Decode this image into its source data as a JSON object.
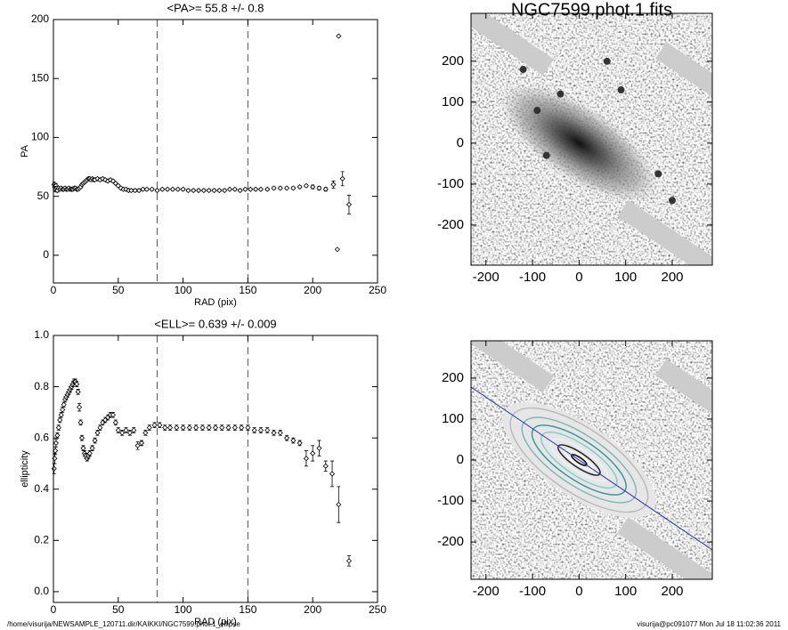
{
  "chart_data": [
    {
      "type": "scatter",
      "title": "<PA>=  55.8 +/-   0.8",
      "x_label": "RAD (pix)",
      "y_label": "PA",
      "xlim": [
        0,
        250
      ],
      "xticks": [
        0,
        50,
        100,
        150,
        200,
        250
      ],
      "ylim": [
        -23.5,
        200
      ],
      "yticks": [
        0,
        50,
        100,
        150,
        200
      ],
      "vlines": [
        80,
        150
      ],
      "color": "#000000",
      "x": [
        0.5,
        1,
        1.5,
        2,
        2.5,
        3,
        4,
        5,
        6,
        7,
        8,
        9,
        10,
        11,
        12,
        13,
        14,
        15,
        16,
        17,
        18,
        19,
        20,
        21,
        22,
        23,
        24,
        25,
        26,
        27,
        28,
        29,
        30,
        31,
        32,
        34,
        36,
        38,
        40,
        42,
        44,
        46,
        48,
        50,
        52,
        54,
        56,
        58,
        60,
        63,
        66,
        69,
        72,
        76,
        80,
        84,
        88,
        92,
        96,
        100,
        104,
        108,
        112,
        116,
        120,
        124,
        128,
        132,
        136,
        140,
        144,
        148,
        152,
        156,
        160,
        165,
        170,
        175,
        180,
        185,
        190,
        195,
        200,
        205,
        210,
        216,
        219,
        220,
        223,
        228
      ],
      "values": [
        60,
        58,
        56,
        59,
        57,
        55,
        57,
        56,
        57,
        56,
        56,
        57,
        56,
        56,
        57,
        56,
        56,
        56,
        57,
        57,
        56,
        56,
        57,
        58,
        60,
        61,
        62,
        63,
        64,
        65,
        65,
        64,
        65,
        64,
        64,
        65,
        64,
        65,
        64,
        63,
        64,
        63,
        61,
        59,
        57,
        56,
        56,
        55,
        55,
        55,
        55,
        56,
        56,
        56,
        55,
        56,
        56,
        56,
        56,
        56,
        55,
        55,
        55,
        55,
        55,
        55,
        55,
        55,
        56,
        56,
        55,
        56,
        56,
        56,
        56,
        56,
        57,
        57,
        57,
        57,
        58,
        59,
        58,
        57,
        56,
        60,
        5,
        186,
        65,
        43
      ],
      "errors": [
        2,
        2,
        2,
        2,
        1.5,
        1.5,
        1,
        1,
        1,
        1,
        1,
        1,
        1,
        1,
        1,
        1,
        1,
        1,
        1,
        1,
        1,
        1,
        1,
        1,
        1,
        1,
        1,
        1,
        1,
        1,
        1,
        1,
        1,
        1,
        1,
        1,
        1,
        1,
        1,
        1,
        1,
        1,
        1,
        1,
        1,
        1,
        1,
        1,
        1,
        1,
        1,
        1,
        1,
        1,
        1,
        1,
        1,
        1,
        1,
        1,
        1,
        1,
        1,
        1,
        1,
        1,
        1,
        1,
        1,
        1,
        1,
        1,
        1,
        1,
        1,
        1,
        1,
        1,
        1,
        1,
        1,
        1,
        1.5,
        1.5,
        1.5,
        3,
        0.5,
        0.5,
        6,
        8
      ]
    },
    {
      "type": "scatter",
      "title": "<ELL>= 0.639 +/-  0.009",
      "x_label": "RAD (pix)",
      "y_label": "ellipticity",
      "xlim": [
        0,
        250
      ],
      "xticks": [
        0,
        50,
        100,
        150,
        200,
        250
      ],
      "ylim": [
        -0.042,
        1.0
      ],
      "yticks": [
        {
          "value": 0,
          "label": "0.0"
        },
        0.2,
        0.4,
        0.6,
        0.8,
        {
          "value": 1,
          "label": "1.0"
        }
      ],
      "vlines": [
        80,
        150
      ],
      "color": "#000000",
      "x": [
        0.5,
        1,
        1.5,
        2,
        3,
        4,
        5,
        6,
        7,
        8,
        9,
        10,
        11,
        12,
        13,
        14,
        15,
        16,
        17,
        18,
        19,
        20,
        21,
        22,
        23,
        24,
        25,
        26,
        27,
        28,
        30,
        32,
        34,
        36,
        38,
        40,
        42,
        44,
        46,
        48,
        50,
        53,
        56,
        59,
        62,
        65,
        68,
        71,
        74,
        78,
        82,
        86,
        90,
        95,
        100,
        105,
        110,
        115,
        120,
        125,
        130,
        135,
        140,
        145,
        150,
        155,
        160,
        165,
        170,
        175,
        180,
        185,
        190,
        195,
        200,
        205,
        210,
        215,
        220,
        228
      ],
      "values": [
        0.48,
        0.52,
        0.55,
        0.58,
        0.61,
        0.64,
        0.67,
        0.69,
        0.71,
        0.73,
        0.75,
        0.76,
        0.77,
        0.78,
        0.79,
        0.8,
        0.81,
        0.82,
        0.82,
        0.81,
        0.78,
        0.72,
        0.66,
        0.6,
        0.56,
        0.54,
        0.53,
        0.52,
        0.53,
        0.54,
        0.56,
        0.59,
        0.62,
        0.64,
        0.66,
        0.67,
        0.68,
        0.69,
        0.69,
        0.66,
        0.63,
        0.62,
        0.63,
        0.62,
        0.63,
        0.57,
        0.58,
        0.62,
        0.64,
        0.65,
        0.65,
        0.64,
        0.64,
        0.64,
        0.64,
        0.64,
        0.64,
        0.64,
        0.64,
        0.64,
        0.64,
        0.64,
        0.64,
        0.64,
        0.64,
        0.63,
        0.63,
        0.63,
        0.62,
        0.62,
        0.6,
        0.59,
        0.58,
        0.52,
        0.54,
        0.56,
        0.49,
        0.46,
        0.34,
        0.12
      ],
      "errors": [
        0.02,
        0.02,
        0.015,
        0.015,
        0.01,
        0.01,
        0.01,
        0.01,
        0.01,
        0.01,
        0.01,
        0.01,
        0.01,
        0.01,
        0.01,
        0.01,
        0.01,
        0.01,
        0.01,
        0.01,
        0.01,
        0.015,
        0.01,
        0.01,
        0.01,
        0.01,
        0.01,
        0.01,
        0.01,
        0.01,
        0.01,
        0.01,
        0.01,
        0.01,
        0.01,
        0.01,
        0.01,
        0.01,
        0.01,
        0.01,
        0.01,
        0.01,
        0.01,
        0.01,
        0.01,
        0.015,
        0.01,
        0.01,
        0.01,
        0.01,
        0.01,
        0.01,
        0.01,
        0.01,
        0.01,
        0.01,
        0.01,
        0.01,
        0.01,
        0.01,
        0.01,
        0.01,
        0.01,
        0.01,
        0.01,
        0.01,
        0.01,
        0.01,
        0.01,
        0.01,
        0.01,
        0.01,
        0.01,
        0.03,
        0.03,
        0.03,
        0.02,
        0.05,
        0.07,
        0.02
      ]
    },
    {
      "type": "image",
      "title": "NGC7599.phot.1.fits",
      "xlim": [
        -232,
        286
      ],
      "xticks": [
        -200,
        -100,
        0,
        100,
        200
      ],
      "ylim": [
        -298,
        317
      ],
      "yticks": [
        -200,
        -100,
        0,
        100,
        200
      ]
    },
    {
      "type": "image",
      "xlim": [
        -232,
        286
      ],
      "xticks": [
        -200,
        -100,
        0,
        100,
        200
      ],
      "ylim": [
        -291,
        291
      ],
      "yticks": [
        -200,
        -100,
        0,
        100,
        200
      ]
    }
  ],
  "footer": {
    "left": "/home/visurija/NEWSAMPLE_120711.dir/KAIKKI/NGC7599.phot.1_ellipse",
    "right": "visurija@pc091077  Mon Jul 18 11:02:36 2011"
  }
}
